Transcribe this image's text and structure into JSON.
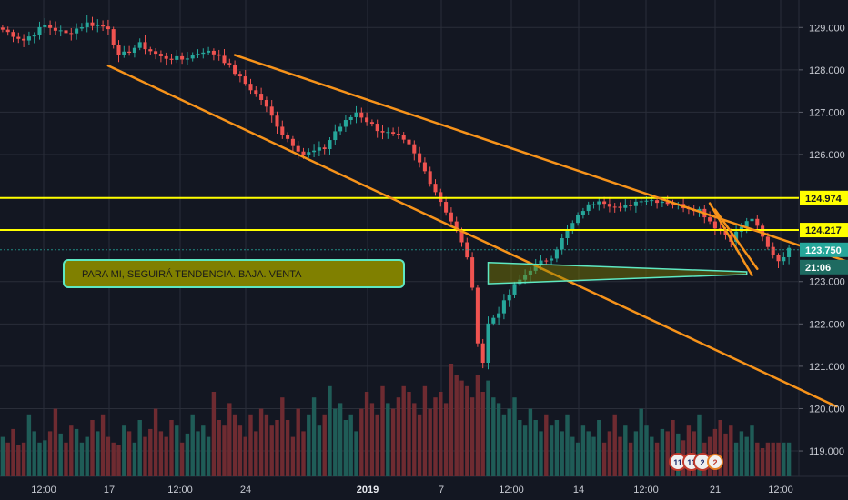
{
  "chart_data": {
    "type": "candlestick",
    "price_axis": {
      "ticks": [
        "129.000",
        "128.000",
        "127.000",
        "126.000",
        "123.000",
        "122.000",
        "121.000",
        "120.000",
        "119.000"
      ],
      "tick_values": [
        129,
        128,
        127,
        126,
        123,
        122,
        121,
        120,
        119
      ],
      "ylim": [
        118.4,
        129.65
      ]
    },
    "time_axis": {
      "ticks": [
        "12:00",
        "17",
        "12:00",
        "24",
        "2019",
        "7",
        "12:00",
        "14",
        "12:00",
        "21",
        "12:00"
      ],
      "bold_index": 4
    },
    "price_tags": [
      {
        "value": 124.974,
        "label": "124.974",
        "kind": "level"
      },
      {
        "value": 124.217,
        "label": "124.217",
        "kind": "level"
      },
      {
        "value": 123.75,
        "label": "123.750",
        "kind": "last_price"
      },
      {
        "value": 123.4,
        "label": "21:06",
        "kind": "countdown"
      }
    ],
    "horizontal_levels": [
      124.974,
      124.217
    ],
    "current_price": 123.75,
    "annotation": {
      "text": "PARA MI, SEGUIRÁ TENDENCIA. BAJA. VENTA",
      "fill_color": "#808000",
      "border_color": "#5ee8c2"
    },
    "event_markers": {
      "labels": [
        "11",
        "11",
        "2"
      ],
      "extra_count": "2"
    },
    "series": {
      "price_path": [
        [
          0,
          128.95
        ],
        [
          4,
          128.7
        ],
        [
          8,
          129.05
        ],
        [
          12,
          128.85
        ],
        [
          16,
          129.1
        ],
        [
          20,
          129.0
        ],
        [
          22,
          128.3
        ],
        [
          26,
          128.6
        ],
        [
          30,
          128.3
        ],
        [
          34,
          128.25
        ],
        [
          38,
          128.45
        ],
        [
          41,
          128.35
        ],
        [
          45,
          127.8
        ],
        [
          49,
          127.3
        ],
        [
          53,
          126.5
        ],
        [
          57,
          126.0
        ],
        [
          61,
          126.15
        ],
        [
          63,
          126.55
        ],
        [
          67,
          127.0
        ],
        [
          71,
          126.6
        ],
        [
          75,
          126.4
        ],
        [
          77,
          126.2
        ],
        [
          80,
          125.6
        ],
        [
          83,
          124.9
        ],
        [
          86,
          124.2
        ],
        [
          88,
          123.6
        ],
        [
          89,
          122.8
        ],
        [
          90,
          121.6
        ],
        [
          91,
          121.1
        ],
        [
          92,
          122.0
        ],
        [
          94,
          122.3
        ],
        [
          97,
          122.9
        ],
        [
          100,
          123.3
        ],
        [
          104,
          123.6
        ],
        [
          107,
          124.2
        ],
        [
          110,
          124.7
        ],
        [
          113,
          124.95
        ],
        [
          117,
          124.7
        ],
        [
          121,
          124.95
        ],
        [
          125,
          124.9
        ],
        [
          128,
          124.8
        ],
        [
          132,
          124.7
        ],
        [
          135,
          124.3
        ],
        [
          138,
          124.0
        ],
        [
          140,
          124.3
        ],
        [
          142,
          124.5
        ],
        [
          145,
          123.8
        ],
        [
          147,
          123.5
        ],
        [
          149,
          123.75
        ]
      ],
      "volume_level": [
        0.35,
        0.3,
        0.42,
        0.28,
        0.3,
        0.55,
        0.4,
        0.3,
        0.32,
        0.4,
        0.6,
        0.38,
        0.3,
        0.45,
        0.42,
        0.3,
        0.35,
        0.5,
        0.4,
        0.55,
        0.35,
        0.3,
        0.28,
        0.45,
        0.4,
        0.3,
        0.5,
        0.35,
        0.42,
        0.6,
        0.4,
        0.35,
        0.5,
        0.45,
        0.3,
        0.38,
        0.55,
        0.4,
        0.45,
        0.35,
        0.75,
        0.5,
        0.45,
        0.65,
        0.55,
        0.45,
        0.35,
        0.55,
        0.4,
        0.6,
        0.55,
        0.45,
        0.5,
        0.7,
        0.5,
        0.35,
        0.6,
        0.4,
        0.55,
        0.7,
        0.45,
        0.55,
        0.8,
        0.6,
        0.65,
        0.5,
        0.55,
        0.4,
        0.6,
        0.75,
        0.65,
        0.55,
        0.8,
        0.65,
        0.6,
        0.7,
        0.8,
        0.75,
        0.65,
        0.55,
        0.8,
        0.6,
        0.7,
        0.75,
        0.65,
        1.0,
        0.9,
        0.85,
        0.8,
        0.7,
        0.9,
        0.75,
        0.85,
        0.7,
        0.65,
        0.55,
        0.6,
        0.7,
        0.5,
        0.45,
        0.6,
        0.5,
        0.4,
        0.55,
        0.45,
        0.5,
        0.4,
        0.55,
        0.35,
        0.3,
        0.45,
        0.4,
        0.35,
        0.5,
        0.3,
        0.4,
        0.55,
        0.35,
        0.45,
        0.3,
        0.4,
        0.6,
        0.45,
        0.35,
        0.3,
        0.42,
        0.4,
        0.5,
        0.38,
        0.32,
        0.45,
        0.4,
        0.55,
        0.3,
        0.35,
        0.42,
        0.5,
        0.38,
        0.45,
        0.3,
        0.4,
        0.35,
        0.45,
        0.3,
        0.25
      ]
    },
    "trendlines": [
      {
        "x1": 20,
        "y1": 128.1,
        "x2": 158,
        "y2": 120.05
      },
      {
        "x1": 44,
        "y1": 128.35,
        "x2": 163,
        "y2": 123.35
      },
      {
        "x1": 134,
        "y1": 124.85,
        "x2": 142,
        "y2": 123.15
      },
      {
        "x1": 135,
        "y1": 124.7,
        "x2": 143,
        "y2": 123.3
      }
    ],
    "bands": [
      {
        "x1": 92,
        "y1": 123.4,
        "x2": 141,
        "y2": 123.2
      }
    ],
    "colors": {
      "background": "#131722",
      "grid": "#2a2e39",
      "candle_up": "#26a69a",
      "candle_down": "#ef5350",
      "volume_up": "#1f5c57",
      "volume_down": "#6e2b31",
      "trendline": "#f7931a",
      "level": "#ffff00",
      "last_price": "#26a69a",
      "axis_text": "#c8cbd3"
    }
  }
}
